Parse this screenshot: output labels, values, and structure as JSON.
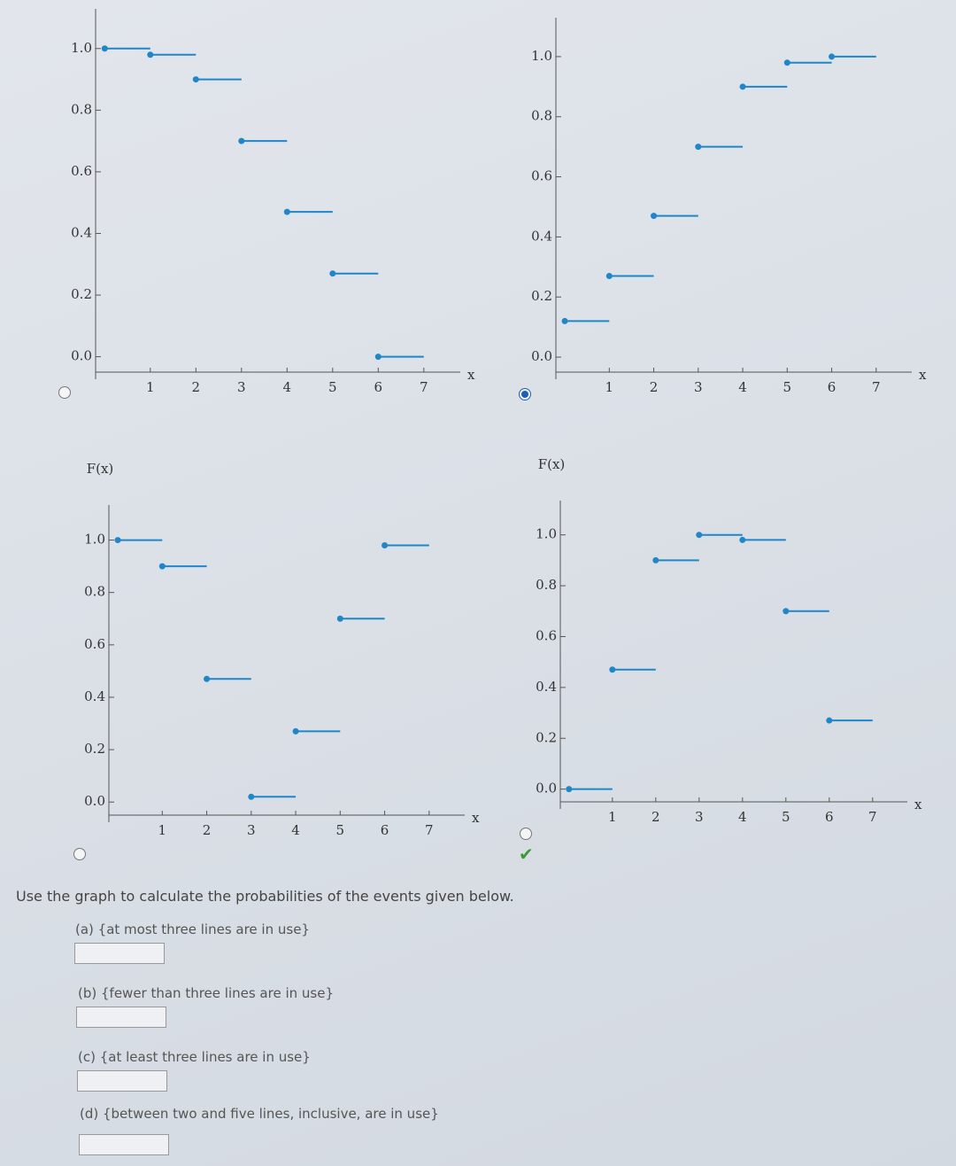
{
  "chart_data": [
    {
      "type": "step",
      "x": [
        0,
        1,
        2,
        3,
        4,
        5,
        6
      ],
      "values": [
        1.0,
        0.98,
        0.9,
        0.7,
        0.47,
        0.27,
        0.0
      ],
      "color": "#1f86c8",
      "xlim": [
        -0.2,
        7.8
      ],
      "xticks": [
        1,
        2,
        3,
        4,
        5,
        6,
        7
      ],
      "xlabel": "x",
      "ylim": [
        -0.05,
        1.1
      ],
      "yticks": [
        {
          "value": 0,
          "label": "0.0"
        },
        {
          "value": 0.2,
          "label": "0.2"
        },
        {
          "value": 0.4,
          "label": "0.4"
        },
        {
          "value": 0.6,
          "label": "0.6"
        },
        {
          "value": 0.8,
          "label": "0.8"
        },
        {
          "value": 1,
          "label": "1.0"
        }
      ]
    },
    {
      "type": "step",
      "x": [
        0,
        1,
        2,
        3,
        4,
        5,
        6
      ],
      "values": [
        0.12,
        0.27,
        0.47,
        0.7,
        0.9,
        0.98,
        1.0
      ],
      "color": "#1f86c8",
      "xlim": [
        -0.2,
        7.8
      ],
      "xticks": [
        1,
        2,
        3,
        4,
        5,
        6,
        7
      ],
      "xlabel": "x",
      "ylim": [
        -0.05,
        1.1
      ],
      "yticks": [
        {
          "value": 0,
          "label": "0.0"
        },
        {
          "value": 0.2,
          "label": "0.2"
        },
        {
          "value": 0.4,
          "label": "0.4"
        },
        {
          "value": 0.6,
          "label": "0.6"
        },
        {
          "value": 0.8,
          "label": "0.8"
        },
        {
          "value": 1,
          "label": "1.0"
        }
      ]
    },
    {
      "type": "step",
      "x": [
        0,
        1,
        2,
        3,
        4,
        5,
        6
      ],
      "values": [
        1.0,
        0.9,
        0.47,
        0.02,
        0.27,
        0.7,
        0.98
      ],
      "color": "#1f86c8",
      "xlim": [
        -0.2,
        7.8
      ],
      "xticks": [
        1,
        2,
        3,
        4,
        5,
        6,
        7
      ],
      "xlabel": "x",
      "ylabel": "F(x)",
      "ylim": [
        -0.05,
        1.1
      ],
      "yticks": [
        {
          "value": 0,
          "label": "0.0"
        },
        {
          "value": 0.2,
          "label": "0.2"
        },
        {
          "value": 0.4,
          "label": "0.4"
        },
        {
          "value": 0.6,
          "label": "0.6"
        },
        {
          "value": 0.8,
          "label": "0.8"
        },
        {
          "value": 1,
          "label": "1.0"
        }
      ]
    },
    {
      "type": "step",
      "x": [
        0,
        1,
        2,
        3,
        4,
        5,
        6
      ],
      "values": [
        0.0,
        0.47,
        0.9,
        1.0,
        0.98,
        0.7,
        0.27
      ],
      "color": "#1f86c8",
      "xlim": [
        -0.2,
        7.8
      ],
      "xticks": [
        1,
        2,
        3,
        4,
        5,
        6,
        7
      ],
      "xlabel": "x",
      "ylabel": "F(x)",
      "ylim": [
        -0.05,
        1.1
      ],
      "yticks": [
        {
          "value": 0,
          "label": "0.0"
        },
        {
          "value": 0.2,
          "label": "0.2"
        },
        {
          "value": 0.4,
          "label": "0.4"
        },
        {
          "value": 0.6,
          "label": "0.6"
        },
        {
          "value": 0.8,
          "label": "0.8"
        },
        {
          "value": 1,
          "label": "1.0"
        }
      ]
    }
  ],
  "prompt": "Use the graph to calculate the probabilities of the events given below.",
  "questions": [
    "(a) {at most three lines are in use}",
    "(b) {fewer than three lines are in use}",
    "(c) {at least three lines are in use}",
    "(d) {between two and five lines, inclusive, are in use}"
  ]
}
